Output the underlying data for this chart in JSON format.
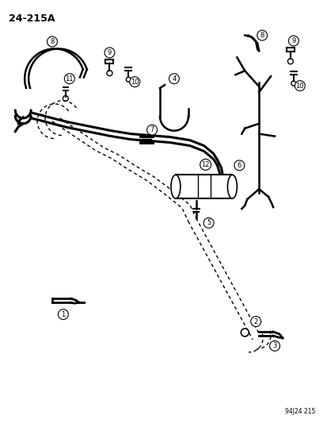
{
  "title": "24−215A",
  "footer": "94J24 215",
  "bg_color": "#ffffff",
  "fg_color": "#000000",
  "figsize": [
    4.14,
    5.33
  ],
  "dpi": 100,
  "xlim": [
    0,
    414
  ],
  "ylim": [
    0,
    533
  ]
}
